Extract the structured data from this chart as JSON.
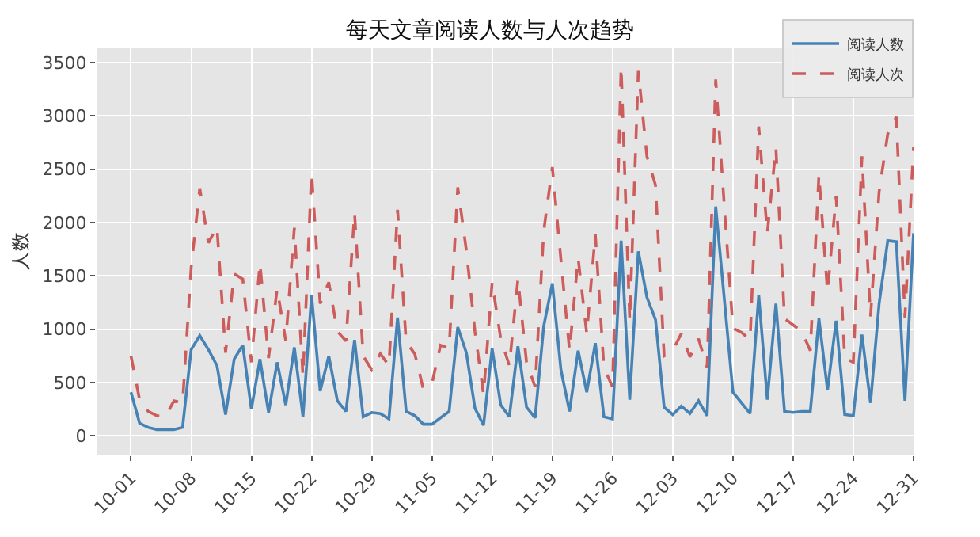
{
  "chart_data": {
    "type": "line",
    "title": "每天文章阅读人数与人次趋势",
    "ylabel": "人数",
    "x": [
      "--10-01",
      "--10-02",
      "--10-03",
      "--10-04",
      "--10-05",
      "--10-06",
      "--10-07",
      "--10-08",
      "--10-09",
      "--10-10",
      "--10-11",
      "--10-12",
      "--10-13",
      "--10-14",
      "--10-15",
      "--10-16",
      "--10-17",
      "--10-18",
      "--10-19",
      "--10-20",
      "--10-21",
      "--10-22",
      "--10-23",
      "--10-24",
      "--10-25",
      "--10-26",
      "--10-27",
      "--10-28",
      "--10-29",
      "--10-30",
      "--10-31",
      "--11-01",
      "--11-02",
      "--11-03",
      "--11-04",
      "--11-05",
      "--11-06",
      "--11-07",
      "--11-08",
      "--11-09",
      "--11-10",
      "--11-11",
      "--11-12",
      "--11-13",
      "--11-14",
      "--11-15",
      "--11-16",
      "--11-17",
      "--11-18",
      "--11-19",
      "--11-20",
      "--11-21",
      "--11-22",
      "--11-23",
      "--11-24",
      "--11-25",
      "--11-26",
      "--11-27",
      "--11-28",
      "--11-29",
      "--11-30",
      "--12-01",
      "--12-02",
      "--12-03",
      "--12-04",
      "--12-05",
      "--12-06",
      "--12-07",
      "--12-08",
      "--12-09",
      "--12-10",
      "--12-11",
      "--12-12",
      "--12-13",
      "--12-14",
      "--12-15",
      "--12-16",
      "--12-17",
      "--12-18",
      "--12-19",
      "--12-20",
      "--12-21",
      "--12-22",
      "--12-23",
      "--12-24",
      "--12-25",
      "--12-26",
      "--12-27",
      "--12-28",
      "--12-29",
      "--12-30",
      "--12-31"
    ],
    "series": [
      {
        "name": "阅读人数",
        "color": "#4682b4",
        "line_style": "solid",
        "values": [
          410,
          120,
          80,
          60,
          60,
          60,
          80,
          810,
          940,
          810,
          660,
          200,
          720,
          850,
          250,
          720,
          220,
          690,
          290,
          830,
          180,
          1320,
          420,
          750,
          330,
          230,
          900,
          180,
          220,
          210,
          160,
          1110,
          230,
          190,
          110,
          110,
          170,
          230,
          1020,
          780,
          260,
          100,
          820,
          290,
          180,
          840,
          270,
          170,
          1030,
          1430,
          620,
          230,
          800,
          410,
          870,
          180,
          160,
          1830,
          340,
          1730,
          1300,
          1090,
          270,
          200,
          280,
          210,
          330,
          190,
          2150,
          1280,
          410,
          310,
          210,
          1320,
          340,
          1240,
          230,
          220,
          230,
          230,
          1100,
          430,
          1080,
          200,
          190,
          950,
          310,
          1240,
          1830,
          1820,
          330,
          1900
        ]
      },
      {
        "name": "阅读人次",
        "color": "#cd5c5c",
        "line_style": "dashed",
        "values": [
          750,
          340,
          230,
          190,
          180,
          330,
          310,
          1580,
          2320,
          1810,
          1960,
          780,
          1520,
          1470,
          690,
          1620,
          730,
          1380,
          890,
          1950,
          560,
          2470,
          1240,
          1440,
          980,
          890,
          2090,
          750,
          620,
          770,
          660,
          2120,
          880,
          770,
          440,
          490,
          850,
          820,
          2330,
          1740,
          980,
          390,
          1440,
          910,
          660,
          1470,
          690,
          460,
          1920,
          2520,
          1650,
          800,
          1670,
          960,
          1890,
          640,
          460,
          3460,
          1080,
          3420,
          2620,
          2350,
          750,
          800,
          960,
          740,
          910,
          640,
          3340,
          2150,
          1010,
          970,
          900,
          2900,
          1900,
          2700,
          1100,
          1040,
          980,
          800,
          2450,
          1350,
          2250,
          730,
          690,
          2620,
          1120,
          2290,
          2830,
          2990,
          1110,
          2710
        ]
      }
    ],
    "xlim": [
      "--09-27",
      "--12-31"
    ],
    "xticks": [
      {
        "value": "--10-01",
        "label": "10-01"
      },
      {
        "value": "--10-08",
        "label": "10-08"
      },
      {
        "value": "--10-15",
        "label": "10-15"
      },
      {
        "value": "--10-22",
        "label": "10-22"
      },
      {
        "value": "--10-29",
        "label": "10-29"
      },
      {
        "value": "--11-05",
        "label": "11-05"
      },
      {
        "value": "--11-12",
        "label": "11-12"
      },
      {
        "value": "--11-19",
        "label": "11-19"
      },
      {
        "value": "--11-26",
        "label": "11-26"
      },
      {
        "value": "--12-03",
        "label": "12-03"
      },
      {
        "value": "--12-10",
        "label": "12-10"
      },
      {
        "value": "--12-17",
        "label": "12-17"
      },
      {
        "value": "--12-24",
        "label": "12-24"
      },
      {
        "value": "--12-31",
        "label": "12-31"
      }
    ],
    "ylim": [
      -175,
      3640
    ],
    "yticks": [
      0,
      500,
      1000,
      1500,
      2000,
      2500,
      3000,
      3500
    ],
    "grid": true,
    "legend": "top right"
  }
}
